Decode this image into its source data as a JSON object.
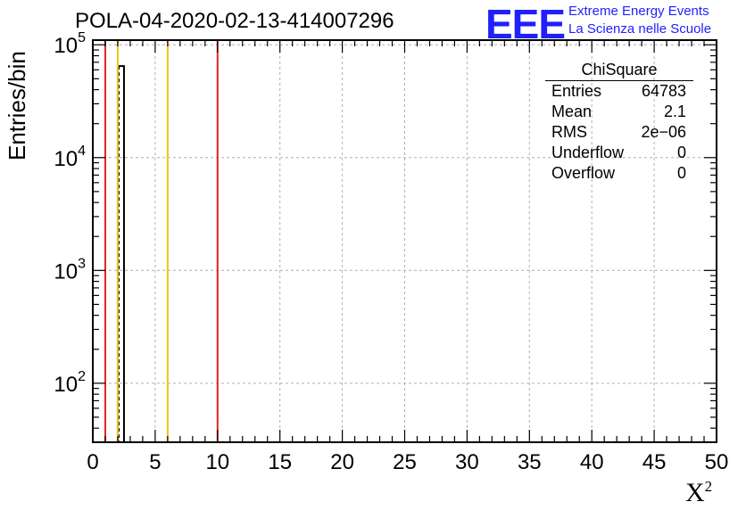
{
  "header": {
    "title": "POLA-04-2020-02-13-414007296",
    "logo_text": "EEE",
    "logo_line1": "Extreme Energy Events",
    "logo_line2": "La Scienza nelle Scuole"
  },
  "stats_box": {
    "name": "ChiSquare",
    "rows": [
      {
        "label": "Entries",
        "value": "64783"
      },
      {
        "label": "Mean",
        "value": "2.1"
      },
      {
        "label": "RMS",
        "value": "2e−06"
      },
      {
        "label": "Underflow",
        "value": "0"
      },
      {
        "label": "Overflow",
        "value": "0"
      }
    ]
  },
  "chart_data": {
    "type": "bar",
    "title": "POLA-04-2020-02-13-414007296",
    "xlabel": "X²",
    "ylabel": "Entries/bin",
    "xlim": [
      0,
      50
    ],
    "ylim": [
      30,
      110000
    ],
    "yscale": "log",
    "grid": true,
    "x_ticks": [
      "0",
      "5",
      "10",
      "15",
      "20",
      "25",
      "30",
      "35",
      "40",
      "45",
      "50"
    ],
    "y_ticks": [
      {
        "base": "10",
        "exp": "2",
        "value": 100
      },
      {
        "base": "10",
        "exp": "3",
        "value": 1000
      },
      {
        "base": "10",
        "exp": "4",
        "value": 10000
      },
      {
        "base": "10",
        "exp": "5",
        "value": 100000
      }
    ],
    "bins": [
      {
        "x0": 2.0,
        "x1": 2.5,
        "value": 64783
      }
    ],
    "reference_lines": [
      {
        "x": 1,
        "color": "#e8231f"
      },
      {
        "x": 2,
        "color": "#f0c419"
      },
      {
        "x": 6,
        "color": "#f0c419"
      },
      {
        "x": 10,
        "color": "#e8231f"
      }
    ],
    "mean_line": {
      "x": 2.1,
      "style": "dashed",
      "color": "#000000"
    }
  }
}
